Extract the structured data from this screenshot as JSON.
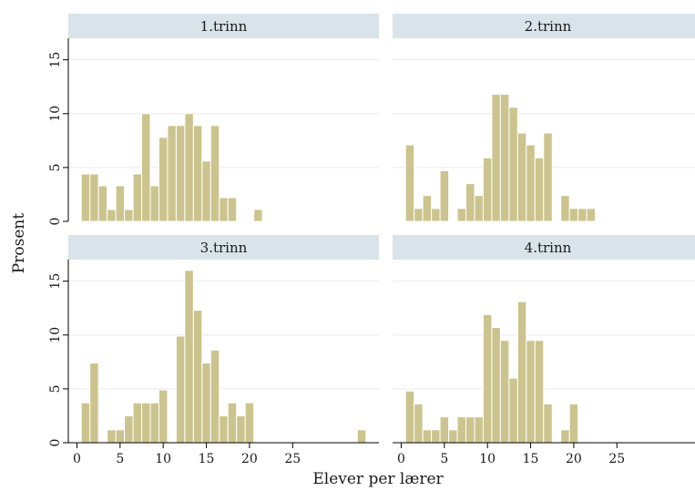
{
  "chart_data": {
    "type": "bar",
    "xlabel": "Elever per lærer",
    "ylabel": "Prosent",
    "xlim": [
      -1,
      35
    ],
    "ylim": [
      0,
      17
    ],
    "x_ticks": [
      "0",
      "5",
      "10",
      "15",
      "20",
      "25"
    ],
    "y_ticks": [
      "0",
      "5",
      "10",
      "15"
    ],
    "grid": true,
    "bin_width": 1,
    "colors": {
      "bar_fill": "#ccc48e",
      "bar_edge": "#ffffff",
      "strip_bg": "#d9e4ea",
      "grid": "#e6eaec",
      "axis": "#000000"
    },
    "panels": [
      {
        "title": "1.trinn",
        "bins": [
          {
            "x": 1,
            "y": 4.4
          },
          {
            "x": 2,
            "y": 4.4
          },
          {
            "x": 3,
            "y": 3.3
          },
          {
            "x": 4,
            "y": 1.1
          },
          {
            "x": 5,
            "y": 3.3
          },
          {
            "x": 6,
            "y": 1.1
          },
          {
            "x": 7,
            "y": 4.4
          },
          {
            "x": 8,
            "y": 10.0
          },
          {
            "x": 9,
            "y": 3.3
          },
          {
            "x": 10,
            "y": 7.8
          },
          {
            "x": 11,
            "y": 8.9
          },
          {
            "x": 12,
            "y": 8.9
          },
          {
            "x": 13,
            "y": 10.0
          },
          {
            "x": 14,
            "y": 8.9
          },
          {
            "x": 15,
            "y": 5.6
          },
          {
            "x": 16,
            "y": 8.9
          },
          {
            "x": 17,
            "y": 2.2
          },
          {
            "x": 18,
            "y": 2.2
          },
          {
            "x": 21,
            "y": 1.1
          }
        ]
      },
      {
        "title": "2.trinn",
        "bins": [
          {
            "x": 1,
            "y": 7.1
          },
          {
            "x": 2,
            "y": 1.2
          },
          {
            "x": 3,
            "y": 2.4
          },
          {
            "x": 4,
            "y": 1.2
          },
          {
            "x": 5,
            "y": 4.7
          },
          {
            "x": 7,
            "y": 1.2
          },
          {
            "x": 8,
            "y": 3.5
          },
          {
            "x": 9,
            "y": 2.4
          },
          {
            "x": 10,
            "y": 5.9
          },
          {
            "x": 11,
            "y": 11.8
          },
          {
            "x": 12,
            "y": 11.8
          },
          {
            "x": 13,
            "y": 10.6
          },
          {
            "x": 14,
            "y": 8.2
          },
          {
            "x": 15,
            "y": 7.1
          },
          {
            "x": 16,
            "y": 5.9
          },
          {
            "x": 17,
            "y": 8.2
          },
          {
            "x": 19,
            "y": 2.4
          },
          {
            "x": 20,
            "y": 1.2
          },
          {
            "x": 21,
            "y": 1.2
          },
          {
            "x": 22,
            "y": 1.2
          }
        ]
      },
      {
        "title": "3.trinn",
        "bins": [
          {
            "x": 1,
            "y": 3.7
          },
          {
            "x": 2,
            "y": 7.4
          },
          {
            "x": 4,
            "y": 1.2
          },
          {
            "x": 5,
            "y": 1.2
          },
          {
            "x": 6,
            "y": 2.5
          },
          {
            "x": 7,
            "y": 3.7
          },
          {
            "x": 8,
            "y": 3.7
          },
          {
            "x": 9,
            "y": 3.7
          },
          {
            "x": 10,
            "y": 4.9
          },
          {
            "x": 12,
            "y": 9.9
          },
          {
            "x": 13,
            "y": 16.0
          },
          {
            "x": 14,
            "y": 12.3
          },
          {
            "x": 15,
            "y": 7.4
          },
          {
            "x": 16,
            "y": 8.6
          },
          {
            "x": 17,
            "y": 2.5
          },
          {
            "x": 18,
            "y": 3.7
          },
          {
            "x": 19,
            "y": 2.5
          },
          {
            "x": 20,
            "y": 3.7
          },
          {
            "x": 33,
            "y": 1.2
          }
        ]
      },
      {
        "title": "4.trinn",
        "bins": [
          {
            "x": 1,
            "y": 4.8
          },
          {
            "x": 2,
            "y": 3.6
          },
          {
            "x": 3,
            "y": 1.2
          },
          {
            "x": 4,
            "y": 1.2
          },
          {
            "x": 5,
            "y": 2.4
          },
          {
            "x": 6,
            "y": 1.2
          },
          {
            "x": 7,
            "y": 2.4
          },
          {
            "x": 8,
            "y": 2.4
          },
          {
            "x": 9,
            "y": 2.4
          },
          {
            "x": 10,
            "y": 11.9
          },
          {
            "x": 11,
            "y": 10.7
          },
          {
            "x": 12,
            "y": 9.5
          },
          {
            "x": 13,
            "y": 6.0
          },
          {
            "x": 14,
            "y": 13.1
          },
          {
            "x": 15,
            "y": 9.5
          },
          {
            "x": 16,
            "y": 9.5
          },
          {
            "x": 17,
            "y": 3.6
          },
          {
            "x": 19,
            "y": 1.2
          },
          {
            "x": 20,
            "y": 3.6
          }
        ]
      }
    ]
  }
}
